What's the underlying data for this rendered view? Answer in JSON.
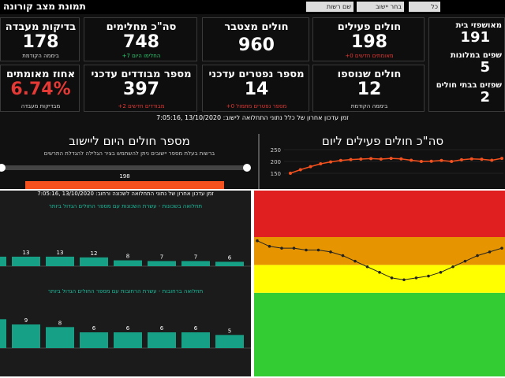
{
  "dashboard": {
    "title": "תמונת מצב קורונה",
    "filters": [
      "שם רשות",
      "בחר יישוב",
      "כל"
    ],
    "cards": [
      {
        "label": "חולים פעילים",
        "value": 198,
        "note": "מאומתים חדשים 0+",
        "note_color": "#e53935"
      },
      {
        "label": "חולים מצטבר",
        "value": 960
      },
      {
        "label": "סה\"כ מחלימים",
        "value": 748,
        "note": "החלימו היום 7+",
        "note_color": "#2ecc71"
      },
      {
        "label": "בדיקות מעבדה",
        "value": 178,
        "note": "ביממה הקודמת",
        "note_color": "#dddddd"
      },
      {
        "label": "חולים שנוספו",
        "value": 12,
        "note": "ביממה הקודמת",
        "note_color": "#dddddd"
      },
      {
        "label": "מספר נפטרים עדכני",
        "value": 14,
        "note": "מספר נפטרים מתמול 0+",
        "note_color": "#e53935"
      },
      {
        "label": "מספר מבודדים עדכני",
        "value": 397,
        "note": "מבודדים חדשים 2+",
        "note_color": "#e53935"
      },
      {
        "label": "אחוז מאומתים",
        "value": "6.74%",
        "note": "מבדיקות מעבדה",
        "note_color": "#dddddd",
        "value_color": "#e53935"
      }
    ],
    "side_items": [
      {
        "label": "מאושפזי בית",
        "value": 191
      },
      {
        "label": "שפים במלונות",
        "value": 5
      },
      {
        "label": "שפזים בבתי חולים",
        "value": 2
      }
    ]
  },
  "update_line": "זמן עדכון אחרון של כלל נתוני התחלואה לישוב: 13/10/2020 ,7:05:16",
  "today_panel": {
    "title": "מספר חולים היום ליישוב",
    "note": "ברשות בעלת מספר יישובים ניתן להשתמש בציר הגלילה להגדלת התרשים",
    "value": 198,
    "color": "#f4511e"
  },
  "active_chart": {
    "type": "line",
    "title": "סה\"כ חולים פעילים ליום",
    "values": [
      150,
      165,
      178,
      190,
      198,
      204,
      208,
      210,
      212,
      210,
      213,
      211,
      205,
      200,
      201,
      204,
      200,
      207,
      211,
      209,
      205,
      213
    ],
    "ylim": [
      100,
      250
    ],
    "yticks": [
      150,
      200,
      250
    ],
    "color": "#f4511e"
  },
  "street_panel": {
    "update_line": "זמן עדכון אחרון של נתוני התחלואה לשכונה ורחוב: 13/10/2020 ,7:05:16",
    "charts": [
      {
        "type": "bar",
        "title": "תחלואה בשכונות - עשרת השכונות עם מספר החולים הגדול ביותר",
        "categories": [
          null,
          null,
          null,
          null,
          null,
          null,
          null,
          null
        ],
        "values": [
          13,
          13,
          13,
          12,
          8,
          7,
          7,
          6
        ],
        "color": "#16a085",
        "ylim": [
          0,
          14
        ]
      },
      {
        "type": "bar",
        "title": "תחלואה ברחובות - עשרת הרחובות עם מספר החולים הגדול ביותר",
        "categories": [
          null,
          null,
          null,
          null,
          null,
          null,
          null,
          null
        ],
        "values": [
          11,
          9,
          8,
          6,
          6,
          6,
          6,
          5
        ],
        "color": "#16a085",
        "ylim": [
          0,
          12
        ]
      }
    ]
  },
  "traffic_chart": {
    "type": "line",
    "values": [
      7.3,
      7.0,
      6.9,
      6.9,
      6.8,
      6.8,
      6.7,
      6.5,
      6.2,
      5.9,
      5.6,
      5.3,
      5.2,
      5.3,
      5.4,
      5.6,
      5.9,
      6.2,
      6.5,
      6.7,
      6.9
    ],
    "ylim": [
      0,
      10
    ],
    "color": "#222222",
    "bands": [
      {
        "from": 0,
        "to": 4.5,
        "color": "#33cc33"
      },
      {
        "from": 4.5,
        "to": 6,
        "color": "#ffff00"
      },
      {
        "from": 6,
        "to": 7.5,
        "color": "#e69500"
      },
      {
        "from": 7.5,
        "to": 10,
        "color": "#e02020"
      }
    ]
  }
}
